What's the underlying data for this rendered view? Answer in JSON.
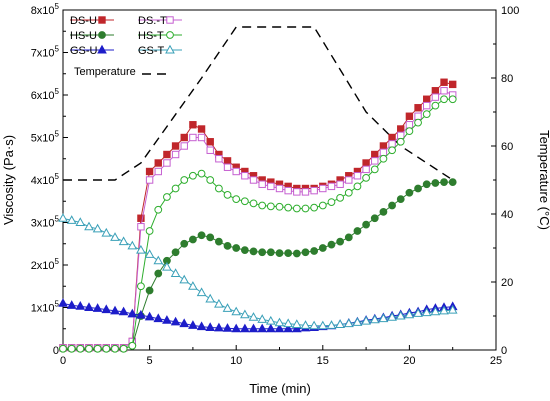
{
  "chart_data": {
    "type": "line",
    "title": "",
    "xlabel": "Time (min)",
    "ylabel": "Viscosity (Pa·s)",
    "y2label": "Temperature (°C)",
    "xlim": [
      0,
      25
    ],
    "ylim": [
      0,
      800000
    ],
    "y2lim": [
      0,
      100
    ],
    "x_ticks": [
      "0",
      "5",
      "10",
      "15",
      "20",
      "25"
    ],
    "y_ticks": [
      {
        "mantissa": "0",
        "exp": ""
      },
      {
        "mantissa": "1x10",
        "exp": "5"
      },
      {
        "mantissa": "2x10",
        "exp": "5"
      },
      {
        "mantissa": "3x10",
        "exp": "5"
      },
      {
        "mantissa": "4x10",
        "exp": "5"
      },
      {
        "mantissa": "5x10",
        "exp": "5"
      },
      {
        "mantissa": "6x10",
        "exp": "5"
      },
      {
        "mantissa": "7x10",
        "exp": "5"
      },
      {
        "mantissa": "8x10",
        "exp": "5"
      }
    ],
    "y2_ticks": [
      "0",
      "20",
      "40",
      "60",
      "80",
      "100"
    ],
    "grid": false,
    "legend_placement": "top-left",
    "x": [
      0,
      0.5,
      1,
      1.5,
      2,
      2.5,
      3,
      3.5,
      4,
      4.5,
      5,
      5.5,
      6,
      6.5,
      7,
      7.5,
      8,
      8.5,
      9,
      9.5,
      10,
      10.5,
      11,
      11.5,
      12,
      12.5,
      13,
      13.5,
      14,
      14.5,
      15,
      15.5,
      16,
      16.5,
      17,
      17.5,
      18,
      18.5,
      19,
      19.5,
      20,
      20.5,
      21,
      21.5,
      22,
      22.5
    ],
    "series": [
      {
        "name": "DS-U",
        "color": "#c0262b",
        "marker": "square",
        "filled": true,
        "axis": "left",
        "values": [
          5000,
          5000,
          5000,
          5000,
          5000,
          5000,
          5000,
          5000,
          20000,
          310000,
          420000,
          440000,
          460000,
          480000,
          500000,
          530000,
          520000,
          490000,
          460000,
          445000,
          430000,
          420000,
          410000,
          400000,
          395000,
          390000,
          385000,
          380000,
          380000,
          380000,
          385000,
          390000,
          400000,
          410000,
          420000,
          440000,
          460000,
          480000,
          500000,
          520000,
          550000,
          570000,
          590000,
          610000,
          630000,
          625000
        ]
      },
      {
        "name": "DS.-T",
        "color": "#c55fd0",
        "marker": "square",
        "filled": false,
        "axis": "left",
        "values": [
          5000,
          5000,
          5000,
          5000,
          5000,
          5000,
          5000,
          5000,
          20000,
          290000,
          400000,
          420000,
          440000,
          460000,
          480000,
          500000,
          500000,
          470000,
          450000,
          430000,
          420000,
          410000,
          400000,
          390000,
          385000,
          380000,
          375000,
          372000,
          372000,
          375000,
          380000,
          385000,
          390000,
          400000,
          410000,
          425000,
          445000,
          465000,
          485000,
          505000,
          530000,
          550000,
          575000,
          595000,
          610000,
          600000
        ]
      },
      {
        "name": "HS-U",
        "color": "#2e7d2e",
        "marker": "circle",
        "filled": true,
        "axis": "left",
        "values": [
          3000,
          3000,
          3000,
          3000,
          3000,
          3000,
          3000,
          3000,
          10000,
          80000,
          140000,
          180000,
          210000,
          230000,
          250000,
          260000,
          270000,
          265000,
          255000,
          245000,
          240000,
          235000,
          232000,
          230000,
          230000,
          228000,
          228000,
          227000,
          230000,
          233000,
          240000,
          248000,
          255000,
          265000,
          280000,
          295000,
          310000,
          325000,
          340000,
          355000,
          370000,
          380000,
          390000,
          393000,
          395000,
          395000
        ]
      },
      {
        "name": "HS-T",
        "color": "#2eae2e",
        "marker": "circle",
        "filled": false,
        "axis": "left",
        "values": [
          3000,
          3000,
          3000,
          3000,
          3000,
          3000,
          3000,
          3000,
          10000,
          150000,
          280000,
          330000,
          360000,
          380000,
          400000,
          410000,
          415000,
          400000,
          380000,
          365000,
          355000,
          350000,
          345000,
          340000,
          338000,
          337000,
          335000,
          333000,
          333000,
          335000,
          340000,
          348000,
          358000,
          370000,
          385000,
          405000,
          425000,
          450000,
          470000,
          490000,
          515000,
          535000,
          555000,
          575000,
          590000,
          590000
        ]
      },
      {
        "name": "GS-U",
        "color": "#1d1dc9",
        "marker": "triangle",
        "filled": true,
        "axis": "left",
        "values": [
          110000,
          105000,
          103000,
          100000,
          98000,
          95000,
          92000,
          90000,
          85000,
          82000,
          78000,
          74000,
          70000,
          66000,
          62000,
          58000,
          55000,
          53000,
          52000,
          51000,
          50000,
          50000,
          50000,
          50000,
          50000,
          50000,
          50000,
          50000,
          52000,
          53000,
          55000,
          57000,
          60000,
          63000,
          66000,
          70000,
          73000,
          76000,
          80000,
          83000,
          87000,
          90000,
          95000,
          98000,
          100000,
          102000
        ]
      },
      {
        "name": "GS-T",
        "color": "#3aa0b8",
        "marker": "triangle",
        "filled": false,
        "axis": "left",
        "values": [
          310000,
          305000,
          300000,
          290000,
          285000,
          275000,
          265000,
          255000,
          245000,
          235000,
          225000,
          210000,
          195000,
          180000,
          165000,
          150000,
          135000,
          120000,
          108000,
          98000,
          90000,
          83000,
          77000,
          72000,
          68000,
          64000,
          62000,
          60000,
          58000,
          57000,
          57000,
          58000,
          60000,
          62000,
          65000,
          68000,
          71000,
          74000,
          77000,
          80000,
          83000,
          86000,
          88000,
          90000,
          92000,
          94000
        ]
      }
    ],
    "temperature": {
      "name": "Temperature",
      "color": "#000000",
      "axis": "right",
      "x": [
        0,
        3,
        4.5,
        8,
        10,
        14.5,
        17.5,
        19.5,
        22.5
      ],
      "values": [
        50,
        50,
        55,
        80,
        95,
        95,
        70,
        60,
        50
      ]
    }
  }
}
